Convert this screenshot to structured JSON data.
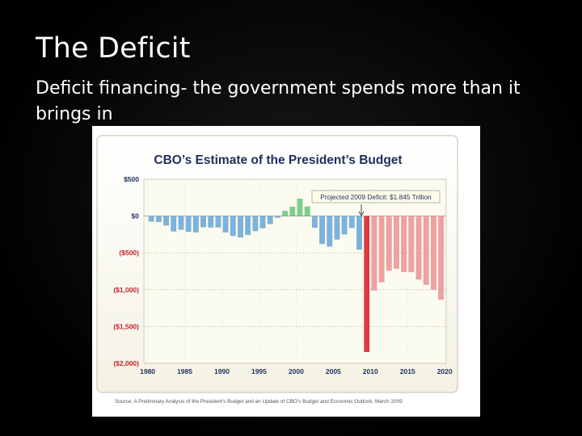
{
  "slide": {
    "title": "The Deficit",
    "body": "Deficit financing- the government spends more than it brings in"
  },
  "chart_data": {
    "type": "bar",
    "title": "CBO’s Estimate of the President’s Budget",
    "ylabel": "",
    "xlabel": "",
    "ylim": [
      -2000,
      500
    ],
    "yticks": [
      500,
      0,
      -500,
      -1000,
      -1500,
      -2000
    ],
    "ytick_labels": [
      "$500",
      "$0",
      "($500)",
      "($1,000)",
      "($1,500)",
      "($2,000)"
    ],
    "xticks": [
      1980,
      1985,
      1990,
      1995,
      2000,
      2005,
      2010,
      2015,
      2020
    ],
    "annotation": "Projected 2009 Deficit: $1.845 Trillion",
    "source": "Source: A Preliminary Analysis of the President’s Budget and an Update of CBO’s Budget and Economic Outlook, March 2009",
    "colors": {
      "deficit": "#7ab3df",
      "surplus": "#7ccf8a",
      "projected": "#f0a0a3",
      "projected_2009": "#e03a3c",
      "background": "#fcfbef",
      "title": "#1e2f5c",
      "tick_red": "#c0262c"
    },
    "categories": [
      1980,
      1981,
      1982,
      1983,
      1984,
      1985,
      1986,
      1987,
      1988,
      1989,
      1990,
      1991,
      1992,
      1993,
      1994,
      1995,
      1996,
      1997,
      1998,
      1999,
      2000,
      2001,
      2002,
      2003,
      2004,
      2005,
      2006,
      2007,
      2008,
      2009,
      2010,
      2011,
      2012,
      2013,
      2014,
      2015,
      2016,
      2017,
      2018,
      2019
    ],
    "values": [
      -74,
      -79,
      -128,
      -208,
      -185,
      -212,
      -221,
      -150,
      -155,
      -153,
      -221,
      -269,
      -290,
      -255,
      -203,
      -164,
      -107,
      -22,
      69,
      126,
      236,
      128,
      -158,
      -378,
      -413,
      -318,
      -248,
      -161,
      -455,
      -1845,
      -1009,
      -897,
      -740,
      -712,
      -758,
      -761,
      -860,
      -932,
      -998,
      -1134
    ],
    "projected_from": 2009
  }
}
